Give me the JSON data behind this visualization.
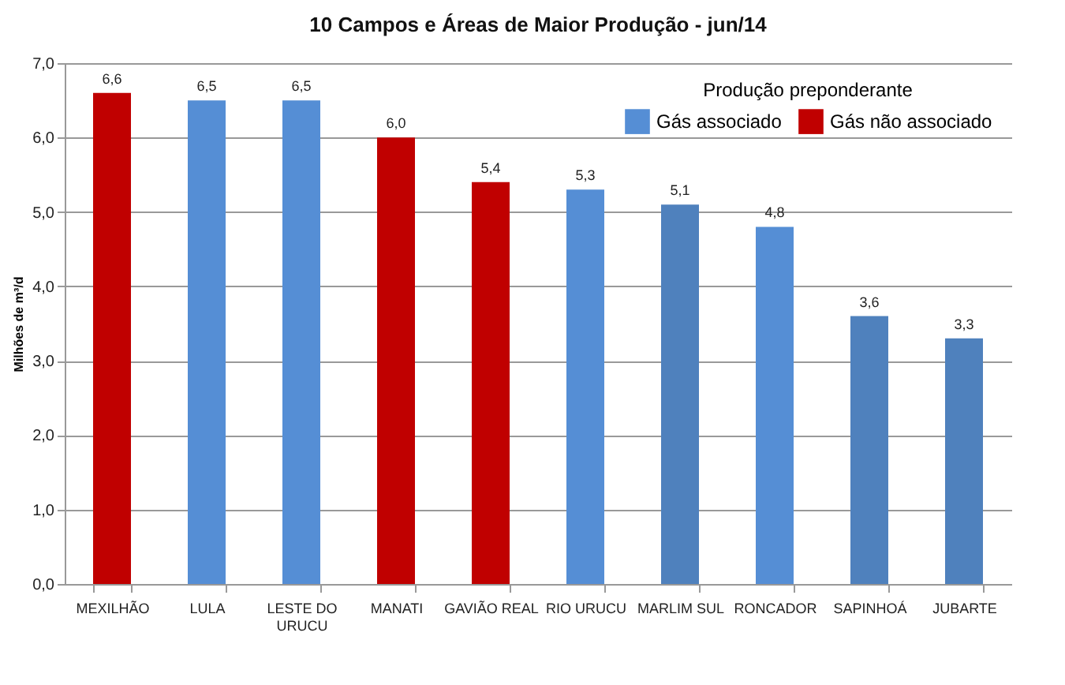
{
  "chart_data": {
    "type": "bar",
    "title": "10 Campos  e Áreas de Maior  Produção  - jun/14",
    "ylabel": "Milhões de m³/d",
    "legend_title": "Produção preponderante",
    "categories": [
      "MEXILHÃO",
      "LULA",
      "LESTE DO URUCU",
      "MANATI",
      "GAVIÃO REAL",
      "RIO URUCU",
      "MARLIM SUL",
      "RONCADOR",
      "SAPINHOÁ",
      "JUBARTE"
    ],
    "series": [
      {
        "name": "Gás associado",
        "color": "#558ed5",
        "colors": [
          null,
          "#558ed5",
          "#558ed5",
          null,
          null,
          "#558ed5",
          "#4f81bd",
          "#558ed5",
          "#4f81bd",
          "#4f81bd"
        ],
        "values": [
          null,
          6.5,
          6.5,
          null,
          null,
          5.3,
          5.1,
          4.8,
          3.6,
          3.3
        ],
        "value_labels": [
          null,
          "6,5",
          "6,5",
          null,
          null,
          "5,3",
          "5,1",
          "4,8",
          "3,6",
          "3,3"
        ]
      },
      {
        "name": "Gás não associado",
        "color": "#c00000",
        "colors": [
          "#c00000",
          null,
          null,
          "#c00000",
          "#c00000",
          null,
          null,
          null,
          null,
          null
        ],
        "values": [
          6.6,
          null,
          null,
          6.0,
          5.4,
          null,
          null,
          null,
          null,
          null
        ],
        "value_labels": [
          "6,6",
          null,
          null,
          "6,0",
          "5,4",
          null,
          null,
          null,
          null,
          null
        ]
      }
    ],
    "ylim": [
      0,
      7
    ],
    "yticks": [
      {
        "value": 0,
        "label": "0,0"
      },
      {
        "value": 1,
        "label": "1,0"
      },
      {
        "value": 2,
        "label": "2,0"
      },
      {
        "value": 3,
        "label": "3,0"
      },
      {
        "value": 4,
        "label": "4,0"
      },
      {
        "value": 5,
        "label": "5,0"
      },
      {
        "value": 6,
        "label": "6,0"
      },
      {
        "value": 7,
        "label": "7,0"
      }
    ],
    "grid": "y",
    "legend": "top right"
  }
}
